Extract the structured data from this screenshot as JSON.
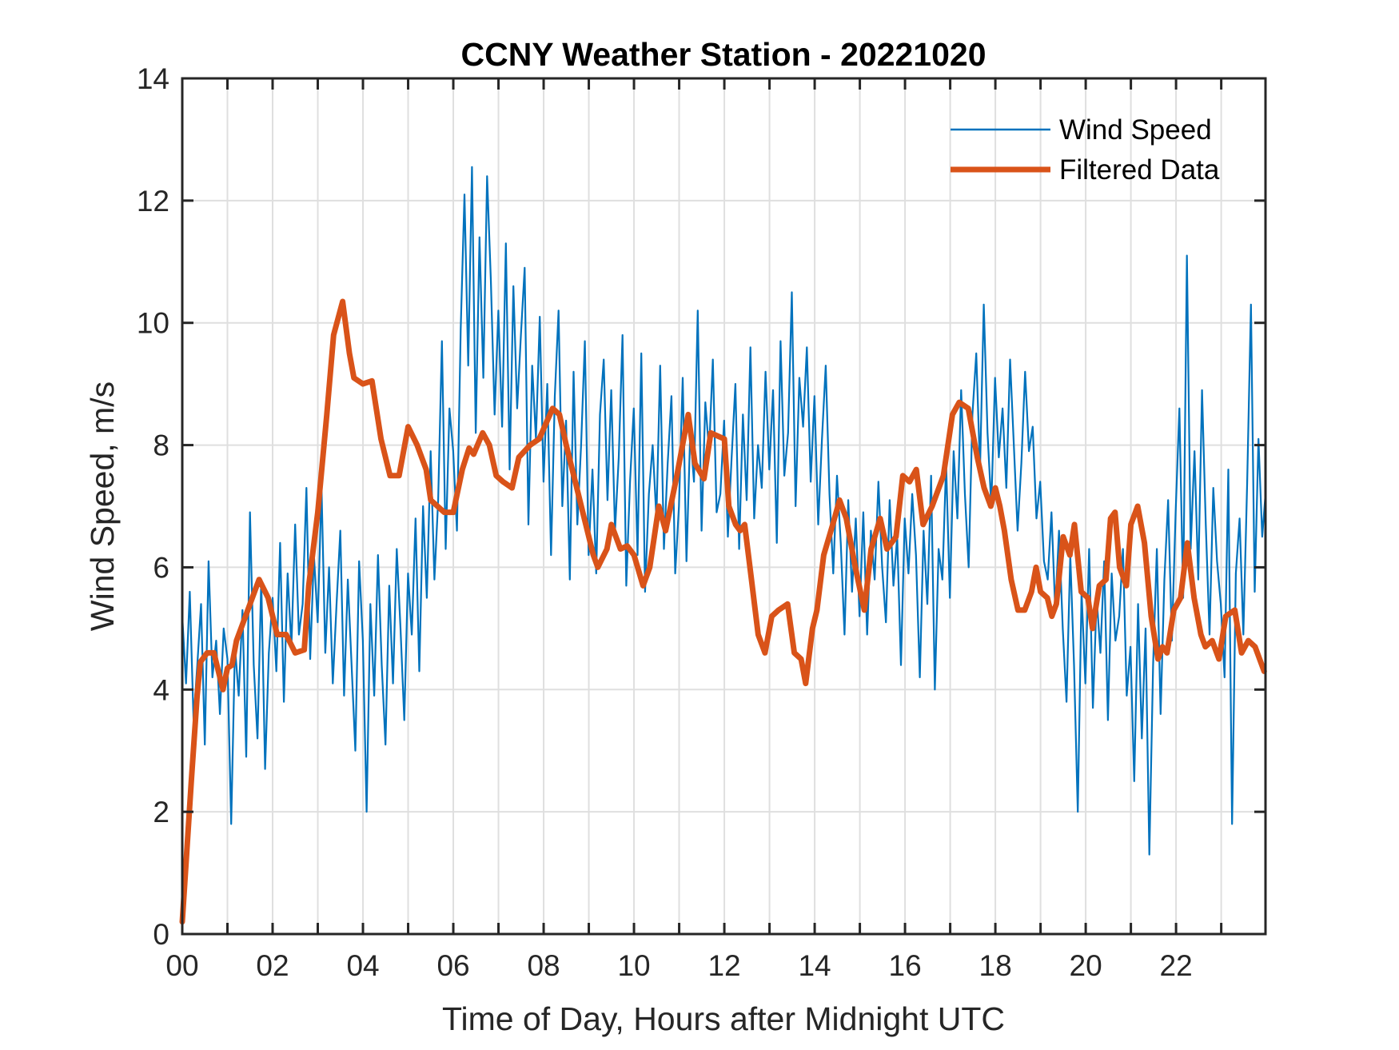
{
  "chart_data": {
    "type": "line",
    "title": "CCNY Weather Station - 20221020",
    "xlabel": "Time of Day, Hours after Midnight UTC",
    "ylabel": "Wind Speed, m/s",
    "xlim": [
      0,
      23.98
    ],
    "ylim": [
      0,
      14
    ],
    "x_ticks": [
      0,
      2,
      4,
      6,
      8,
      10,
      12,
      14,
      16,
      18,
      20,
      22
    ],
    "x_tick_labels": [
      "00",
      "02",
      "04",
      "06",
      "08",
      "10",
      "12",
      "14",
      "16",
      "18",
      "20",
      "22"
    ],
    "x_minor_grid_hours": [
      1,
      3,
      5,
      7,
      9,
      11,
      13,
      15,
      17,
      19,
      21,
      23
    ],
    "y_ticks": [
      0,
      2,
      4,
      6,
      8,
      10,
      12,
      14
    ],
    "y_tick_labels": [
      "0",
      "2",
      "4",
      "6",
      "8",
      "10",
      "12",
      "14"
    ],
    "grid": true,
    "legend": {
      "placement": "top-right",
      "box": false
    },
    "series": [
      {
        "name": "Wind Speed",
        "color": "#0072BD",
        "x_step_hours": 0.0833,
        "values": [
          5.2,
          4.1,
          5.6,
          3.5,
          4.4,
          5.4,
          3.1,
          6.1,
          4.2,
          4.8,
          3.6,
          5.0,
          4.5,
          1.8,
          4.7,
          3.9,
          5.3,
          2.9,
          6.9,
          4.4,
          3.2,
          5.8,
          2.7,
          4.6,
          5.5,
          4.3,
          6.4,
          3.8,
          5.9,
          4.7,
          6.7,
          4.9,
          5.4,
          7.3,
          4.5,
          6.2,
          5.1,
          7.3,
          4.6,
          6.0,
          4.1,
          5.4,
          6.6,
          3.9,
          5.8,
          4.4,
          3.0,
          6.1,
          4.8,
          2.0,
          5.4,
          3.9,
          6.2,
          4.4,
          3.1,
          5.7,
          4.1,
          6.3,
          5.0,
          3.5,
          5.9,
          4.9,
          6.8,
          4.3,
          7.0,
          5.5,
          7.9,
          5.8,
          7.1,
          9.7,
          6.3,
          8.6,
          7.9,
          6.6,
          9.9,
          12.1,
          9.3,
          12.55,
          8.2,
          11.4,
          9.1,
          12.4,
          10.7,
          8.5,
          10.2,
          8.3,
          11.3,
          7.6,
          10.6,
          8.6,
          9.8,
          10.9,
          6.7,
          9.3,
          8.1,
          10.1,
          7.4,
          9.0,
          6.2,
          8.8,
          10.2,
          7.0,
          8.4,
          5.8,
          9.2,
          6.7,
          8.0,
          9.7,
          6.2,
          7.6,
          5.9,
          8.5,
          9.4,
          7.1,
          8.9,
          6.6,
          7.8,
          9.8,
          5.7,
          7.4,
          8.6,
          6.2,
          9.5,
          5.6,
          7.2,
          8.0,
          6.8,
          9.3,
          6.3,
          7.7,
          8.8,
          5.9,
          7.0,
          9.1,
          6.1,
          8.2,
          7.4,
          10.2,
          6.6,
          8.7,
          7.9,
          9.4,
          6.9,
          7.2,
          8.4,
          6.5,
          7.8,
          9.0,
          6.3,
          8.5,
          7.1,
          9.6,
          6.8,
          8.0,
          7.3,
          9.2,
          7.6,
          8.9,
          6.4,
          9.7,
          7.5,
          8.2,
          10.5,
          7.0,
          9.1,
          8.3,
          9.6,
          7.4,
          8.8,
          6.7,
          8.1,
          9.3,
          7.2,
          5.9,
          7.5,
          6.4,
          4.9,
          7.1,
          5.6,
          6.8,
          5.2,
          6.9,
          4.9,
          6.6,
          5.8,
          7.4,
          6.0,
          5.1,
          7.1,
          5.7,
          6.5,
          4.4,
          6.8,
          5.9,
          7.2,
          6.2,
          4.2,
          6.6,
          5.4,
          7.5,
          4.0,
          6.3,
          5.8,
          7.7,
          5.5,
          7.9,
          6.8,
          8.9,
          7.2,
          6.0,
          8.5,
          9.5,
          7.6,
          10.3,
          8.2,
          7.0,
          9.1,
          7.8,
          8.6,
          7.3,
          9.4,
          8.0,
          6.6,
          7.7,
          9.2,
          7.9,
          8.3,
          6.8,
          7.4,
          6.1,
          5.8,
          6.9,
          5.3,
          6.6,
          5.0,
          3.8,
          6.2,
          4.4,
          2.0,
          5.6,
          4.1,
          6.3,
          3.7,
          5.5,
          4.6,
          6.1,
          3.5,
          5.9,
          4.8,
          5.2,
          6.3,
          3.9,
          4.7,
          2.5,
          5.4,
          3.2,
          5.0,
          1.3,
          4.4,
          6.3,
          3.6,
          5.8,
          7.1,
          4.8,
          6.9,
          8.6,
          5.5,
          11.1,
          6.3,
          7.9,
          5.8,
          8.9,
          6.7,
          4.9,
          7.3,
          6.1,
          5.4,
          4.2,
          7.6,
          1.8,
          5.9,
          6.8,
          4.9,
          7.4,
          10.3,
          5.6,
          8.1,
          6.5,
          7.2,
          9.5,
          6.3,
          8.4,
          7.0,
          10.9,
          6.9,
          8.2,
          5.7,
          9.0,
          7.7,
          6.4,
          8.9,
          6.1,
          7.5,
          9.9,
          6.8,
          8.3,
          7.2,
          10.5,
          6.6,
          9.4,
          8.0,
          7.3,
          10.0,
          8.6,
          11.0,
          7.8,
          10.9,
          9.2,
          8.1,
          10.4,
          7.4,
          9.5,
          6.8,
          8.7,
          7.1,
          9.6,
          6.3,
          8.0,
          5.9,
          3.4,
          7.5,
          6.2,
          8.9,
          5.4,
          7.0,
          4.4,
          6.5,
          5.1,
          3.8,
          7.6,
          5.7,
          4.2,
          8.3,
          5.0,
          6.9,
          3.3,
          6.1,
          4.7,
          7.8,
          5.3,
          2.6,
          6.4,
          4.0,
          9.9,
          5.2,
          3.1,
          6.0,
          4.8,
          8.6,
          5.9,
          10.4,
          4.3,
          6.8,
          2.1,
          7.3,
          5.6,
          8.2,
          4.6,
          9.1,
          6.2,
          3.9,
          6.7,
          5.4,
          7.9,
          4.5,
          6.3,
          9.0,
          5.1,
          11.3,
          6.6,
          3.7,
          7.4,
          5.8,
          2.8,
          4.9,
          6.1,
          1.8,
          4.2,
          5.7,
          3.4,
          5.1,
          10.9,
          4.8,
          6.4,
          4.0,
          7.6,
          5.3,
          8.1,
          4.1,
          6.2,
          3.3,
          5.0,
          8.9,
          4.4,
          6.0,
          2.9,
          5.5,
          4.3,
          7.4,
          1.6,
          5.3,
          8.0,
          4.6,
          6.4,
          3.6,
          5.9,
          1.5,
          5.1,
          4.2,
          5.6,
          3.8,
          5.0,
          4.4,
          2.3,
          3.1
        ]
      },
      {
        "name": "Filtered Data",
        "color": "#D95319",
        "x": [
          0.0,
          0.2,
          0.33,
          0.4,
          0.55,
          0.7,
          0.8,
          0.9,
          1.0,
          1.1,
          1.2,
          1.4,
          1.6,
          1.7,
          1.9,
          2.1,
          2.3,
          2.5,
          2.7,
          2.8,
          3.0,
          3.2,
          3.35,
          3.55,
          3.7,
          3.8,
          4.0,
          4.2,
          4.4,
          4.6,
          4.8,
          5.0,
          5.2,
          5.4,
          5.5,
          5.8,
          6.0,
          6.2,
          6.35,
          6.45,
          6.65,
          6.8,
          6.95,
          7.1,
          7.3,
          7.45,
          7.7,
          7.9,
          8.2,
          8.35,
          8.5,
          8.7,
          8.9,
          9.1,
          9.2,
          9.4,
          9.5,
          9.7,
          9.85,
          10.0,
          10.2,
          10.35,
          10.55,
          10.7,
          10.95,
          11.2,
          11.35,
          11.55,
          11.7,
          12.0,
          12.1,
          12.25,
          12.35,
          12.45,
          12.6,
          12.75,
          12.9,
          13.05,
          13.2,
          13.4,
          13.55,
          13.7,
          13.8,
          13.95,
          14.05,
          14.2,
          14.4,
          14.55,
          14.7,
          14.9,
          15.1,
          15.25,
          15.45,
          15.6,
          15.8,
          15.95,
          16.1,
          16.25,
          16.4,
          16.6,
          16.85,
          17.05,
          17.2,
          17.4,
          17.6,
          17.75,
          17.9,
          18.0,
          18.1,
          18.2,
          18.35,
          18.5,
          18.65,
          18.8,
          18.9,
          19.0,
          19.15,
          19.25,
          19.35,
          19.5,
          19.65,
          19.75,
          19.9,
          20.05,
          20.15,
          20.3,
          20.45,
          20.55,
          20.65,
          20.75,
          20.9,
          21.0,
          21.15,
          21.3,
          21.45,
          21.6,
          21.7,
          21.8,
          21.95,
          22.1,
          22.25,
          22.4,
          22.55,
          22.65,
          22.8,
          22.95,
          23.1,
          23.3,
          23.45,
          23.6,
          23.75,
          23.95
        ],
        "values": [
          0.2,
          2.5,
          3.9,
          4.45,
          4.6,
          4.6,
          4.3,
          4.0,
          4.35,
          4.4,
          4.8,
          5.2,
          5.6,
          5.8,
          5.5,
          4.9,
          4.9,
          4.6,
          4.65,
          5.7,
          6.9,
          8.5,
          9.8,
          10.35,
          9.5,
          9.1,
          9.0,
          9.05,
          8.1,
          7.5,
          7.5,
          8.3,
          8.0,
          7.6,
          7.1,
          6.9,
          6.9,
          7.6,
          7.95,
          7.85,
          8.2,
          8.0,
          7.5,
          7.4,
          7.3,
          7.8,
          8.0,
          8.1,
          8.6,
          8.5,
          8.0,
          7.4,
          6.8,
          6.2,
          6.0,
          6.3,
          6.7,
          6.3,
          6.35,
          6.2,
          5.7,
          6.0,
          7.0,
          6.6,
          7.5,
          8.5,
          7.7,
          7.45,
          8.2,
          8.1,
          7.0,
          6.7,
          6.6,
          6.7,
          5.8,
          4.9,
          4.6,
          5.2,
          5.3,
          5.4,
          4.6,
          4.5,
          4.1,
          5.0,
          5.3,
          6.2,
          6.7,
          7.1,
          6.8,
          6.0,
          5.3,
          6.3,
          6.8,
          6.3,
          6.5,
          7.5,
          7.4,
          7.6,
          6.7,
          7.0,
          7.5,
          8.5,
          8.7,
          8.6,
          7.8,
          7.3,
          7.0,
          7.3,
          7.0,
          6.6,
          5.8,
          5.3,
          5.3,
          5.6,
          6.0,
          5.6,
          5.5,
          5.2,
          5.4,
          6.5,
          6.2,
          6.7,
          5.6,
          5.5,
          5.0,
          5.7,
          5.8,
          6.8,
          6.9,
          6.0,
          5.7,
          6.7,
          7.0,
          6.4,
          5.2,
          4.5,
          4.7,
          4.6,
          5.3,
          5.5,
          6.4,
          5.5,
          4.9,
          4.7,
          4.8,
          4.5,
          5.2,
          5.3,
          4.6,
          4.8,
          4.7,
          4.3
        ]
      }
    ]
  }
}
